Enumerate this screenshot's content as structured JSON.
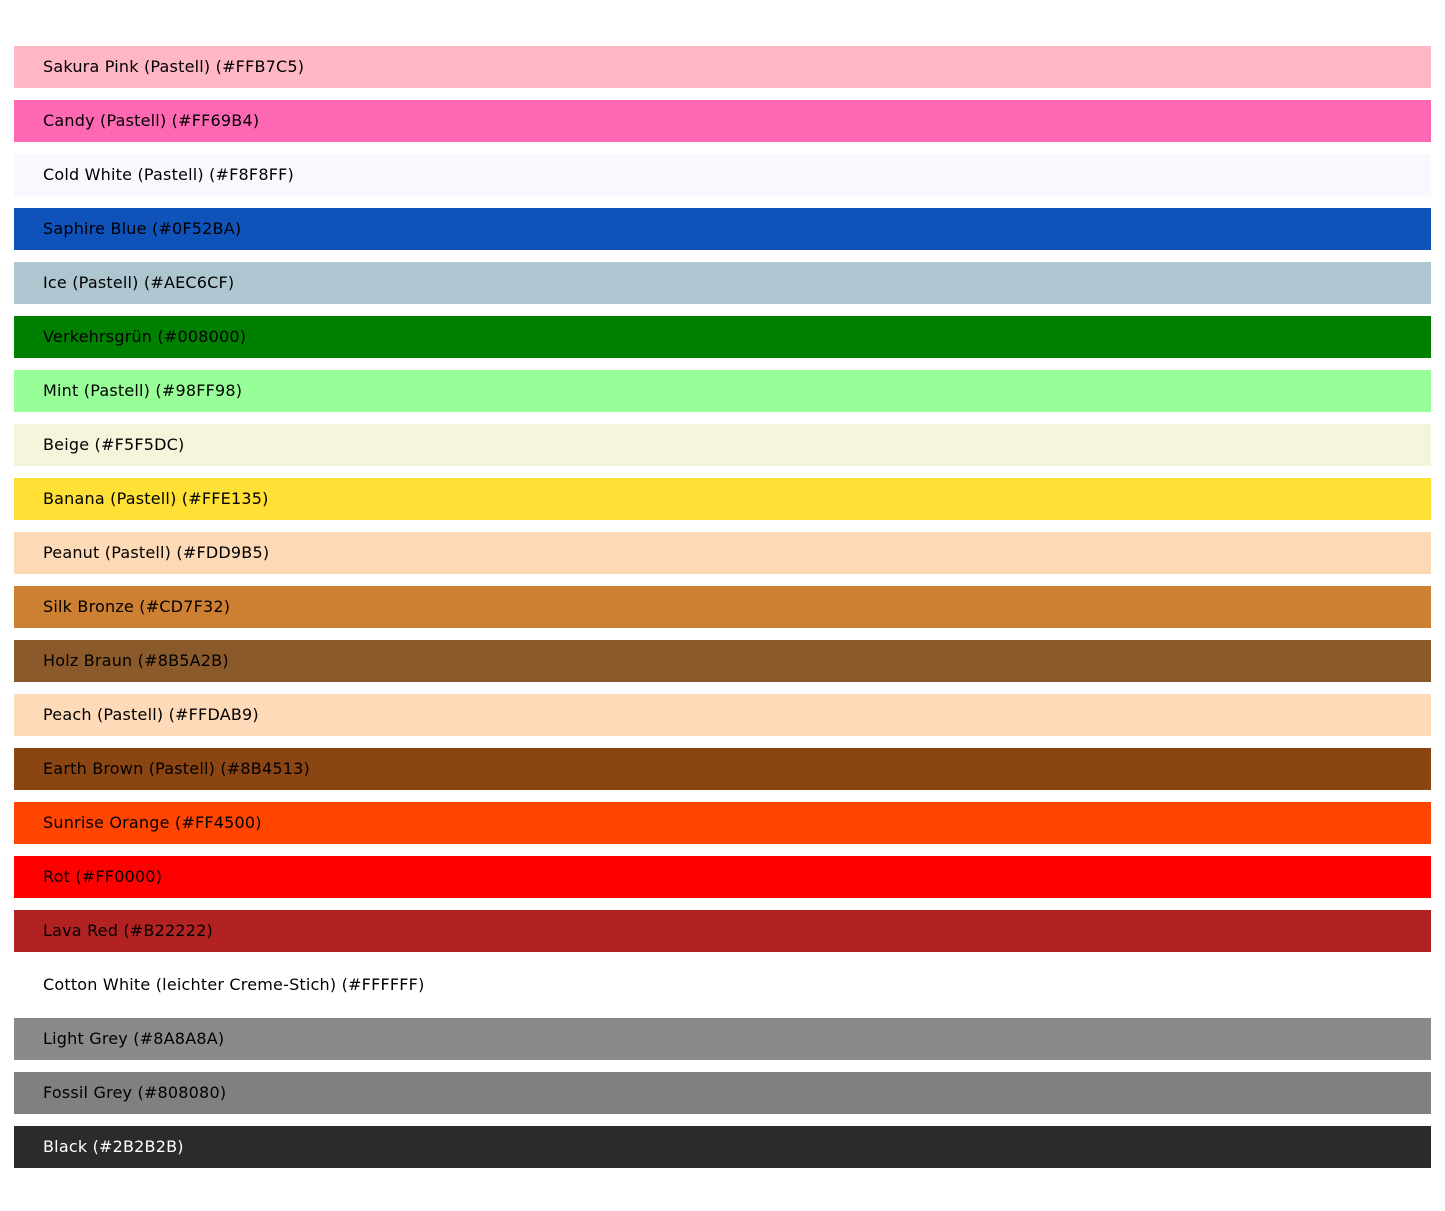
{
  "page": {
    "background": "#FFFFFF",
    "default_text_color": "#000000"
  },
  "swatches": [
    {
      "label": "Sakura Pink (Pastell) (#FFB7C5)",
      "color": "#FFB7C5",
      "text_color": "#000000"
    },
    {
      "label": "Candy (Pastell) (#FF69B4)",
      "color": "#FF69B4",
      "text_color": "#000000"
    },
    {
      "label": "Cold White (Pastell) (#F8F8FF)",
      "color": "#F8F8FF",
      "text_color": "#000000"
    },
    {
      "label": "Saphire Blue (#0F52BA)",
      "color": "#0F52BA",
      "text_color": "#000000"
    },
    {
      "label": "Ice (Pastell) (#AEC6CF)",
      "color": "#AEC6CF",
      "text_color": "#000000"
    },
    {
      "label": "Verkehrsgrün (#008000)",
      "color": "#008000",
      "text_color": "#000000"
    },
    {
      "label": "Mint (Pastell) (#98FF98)",
      "color": "#98FF98",
      "text_color": "#000000"
    },
    {
      "label": "Beige (#F5F5DC)",
      "color": "#F5F5DC",
      "text_color": "#000000"
    },
    {
      "label": "Banana (Pastell) (#FFE135)",
      "color": "#FFE135",
      "text_color": "#000000"
    },
    {
      "label": "Peanut (Pastell) (#FDD9B5)",
      "color": "#FDD9B5",
      "text_color": "#000000"
    },
    {
      "label": "Silk Bronze (#CD7F32)",
      "color": "#CD7F32",
      "text_color": "#000000"
    },
    {
      "label": "Holz Braun (#8B5A2B)",
      "color": "#8B5A2B",
      "text_color": "#000000"
    },
    {
      "label": "Peach (Pastell) (#FFDAB9)",
      "color": "#FFDAB9",
      "text_color": "#000000"
    },
    {
      "label": "Earth Brown (Pastell) (#8B4513)",
      "color": "#8B4513",
      "text_color": "#000000"
    },
    {
      "label": "Sunrise Orange (#FF4500)",
      "color": "#FF4500",
      "text_color": "#000000"
    },
    {
      "label": "Rot (#FF0000)",
      "color": "#FF0000",
      "text_color": "#000000"
    },
    {
      "label": "Lava Red (#B22222)",
      "color": "#B22222",
      "text_color": "#000000"
    },
    {
      "label": "Cotton White (leichter Creme-Stich) (#FFFFFF)",
      "color": "#FFFFFF",
      "text_color": "#000000"
    },
    {
      "label": "Light Grey (#8A8A8A)",
      "color": "#8A8A8A",
      "text_color": "#000000"
    },
    {
      "label": "Fossil Grey (#808080)",
      "color": "#808080",
      "text_color": "#000000"
    },
    {
      "label": "Black (#2B2B2B)",
      "color": "#2B2B2B",
      "text_color": "#FFFFFF"
    }
  ]
}
